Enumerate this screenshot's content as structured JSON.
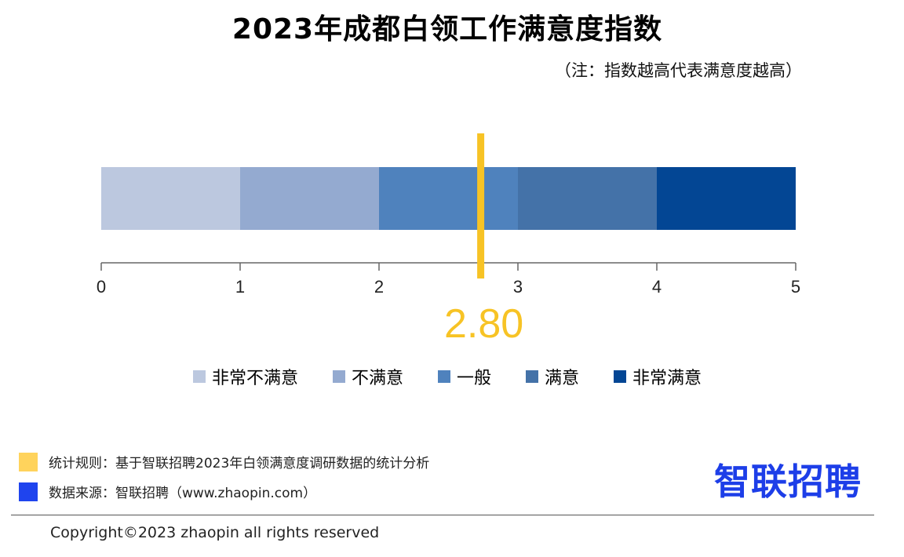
{
  "title": "2023年成都白领工作满意度指数",
  "note": "（注：指数越高代表满意度越高）",
  "chart_data": {
    "type": "bar",
    "title": "2023年成都白领工作满意度指数",
    "xlim": [
      0,
      5
    ],
    "ticks": [
      "0",
      "1",
      "2",
      "3",
      "4",
      "5"
    ],
    "segments": [
      {
        "name": "非常不满意",
        "from": 0,
        "to": 1,
        "color": "#bcc8df"
      },
      {
        "name": "不满意",
        "from": 1,
        "to": 2,
        "color": "#94aad0"
      },
      {
        "name": "一般",
        "from": 2,
        "to": 3,
        "color": "#4f82bd"
      },
      {
        "name": "满意",
        "from": 3,
        "to": 4,
        "color": "#4472a8"
      },
      {
        "name": "非常满意",
        "from": 4,
        "to": 5,
        "color": "#034694"
      }
    ],
    "marker": {
      "value": 2.8,
      "label": "2.80",
      "color": "#f7c325"
    },
    "legend_position": "bottom"
  },
  "footer": {
    "rule_text": "统计规则：基于智联招聘2023年白领满意度调研数据的统计分析",
    "rule_color": "#ffd35c",
    "source_text": "数据来源：智联招聘（www.zhaopin.com）",
    "source_color": "#1f44ee"
  },
  "logo": "智联招聘",
  "copyright": "Copyright©2023 zhaopin all rights reserved"
}
